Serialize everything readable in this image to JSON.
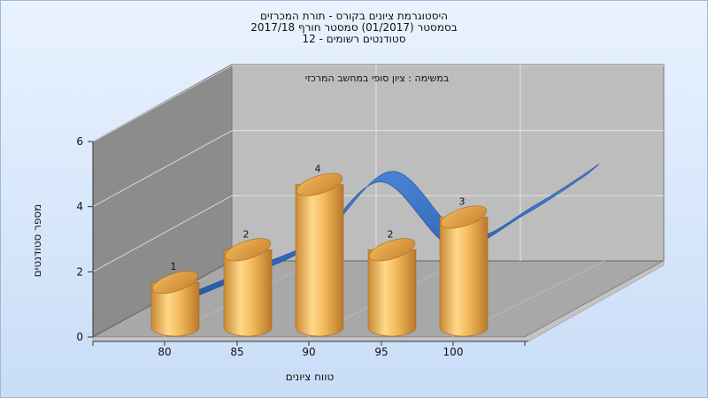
{
  "chart_data": {
    "type": "bar",
    "title_lines": [
      "היסטוגרמת ציונים בקורס - תורת המכרזים",
      "בסמסטר  (01/2017)  סמסטר חורף 2017/18",
      "סטודנטים רשומים - 12"
    ],
    "annotation": "במשימה : ציון סופי במחשב המרכזי",
    "xlabel": "טווח ציונים",
    "ylabel": "מספר סטודנטים",
    "categories": [
      "80",
      "85",
      "90",
      "95",
      "100"
    ],
    "values": [
      1,
      2,
      4,
      2,
      3
    ],
    "ylim": [
      0,
      6
    ],
    "yticks": [
      0,
      2,
      4,
      6
    ],
    "grid": true,
    "colors": {
      "bar_light": "#ffd27a",
      "bar_mid": "#e9a84a",
      "bar_dark": "#b9782a",
      "bar_top": "#d99a3c",
      "ribbon": "#2f66b8",
      "ribbon_light": "#4a86d6",
      "back_wall": "#bdbdbd",
      "side_wall": "#8a8a8a",
      "floor": "#a9a9a9"
    }
  }
}
